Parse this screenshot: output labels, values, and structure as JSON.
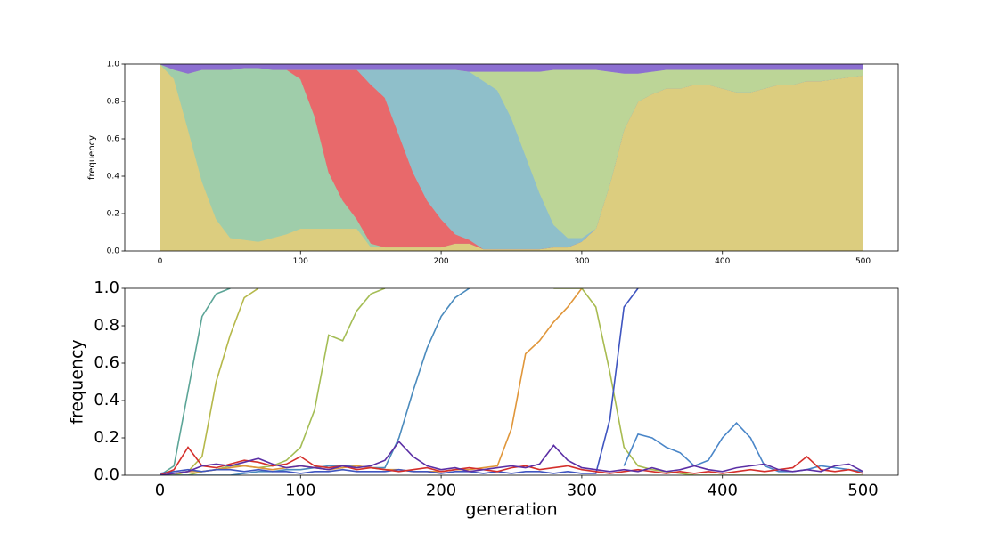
{
  "chart_data": [
    {
      "type": "area",
      "stacked": true,
      "ylabel": "frequency",
      "x": [
        0,
        10,
        20,
        30,
        40,
        50,
        60,
        70,
        80,
        90,
        100,
        110,
        120,
        130,
        140,
        150,
        160,
        170,
        180,
        190,
        200,
        210,
        220,
        230,
        240,
        250,
        260,
        270,
        280,
        290,
        300,
        310,
        320,
        330,
        340,
        350,
        360,
        370,
        380,
        390,
        400,
        410,
        420,
        430,
        440,
        450,
        460,
        470,
        480,
        490,
        500
      ],
      "xlim": [
        -25,
        525
      ],
      "xticks": [
        0,
        100,
        200,
        300,
        400,
        500
      ],
      "ylim": [
        0,
        1
      ],
      "yticks": [
        {
          "value": 0,
          "label": "0.0"
        },
        0.2,
        0.4,
        0.6,
        0.8,
        {
          "value": 1,
          "label": "1.0"
        }
      ],
      "series": [
        {
          "color": "#dccd7f",
          "values": [
            1,
            0.92,
            0.65,
            0.37,
            0.17,
            0.07,
            0.06,
            0.05,
            0.07,
            0.09,
            0.12,
            0.12,
            0.12,
            0.12,
            0.12,
            0.02,
            0.02,
            0.02,
            0.02,
            0.02,
            0.02,
            0.04,
            0.04,
            0.01,
            0.01,
            0.01,
            0.01,
            0.01,
            0.02,
            0.02,
            0.05,
            0.12,
            0.36,
            0.65,
            0.8,
            0.84,
            0.87,
            0.87,
            0.89,
            0.89,
            0.87,
            0.85,
            0.85,
            0.87,
            0.89,
            0.89,
            0.91,
            0.91,
            0.92,
            0.93,
            0.94
          ]
        },
        {
          "color": "#9fcdaa",
          "values": [
            0,
            0.05,
            0.3,
            0.6,
            0.8,
            0.9,
            0.92,
            0.93,
            0.9,
            0.88,
            0.8,
            0.6,
            0.3,
            0.15,
            0.05,
            0.02,
            0,
            0,
            0,
            0,
            0,
            0,
            0,
            0,
            0,
            0,
            0,
            0,
            0,
            0,
            0,
            0,
            0,
            0,
            0,
            0,
            0,
            0,
            0,
            0,
            0,
            0,
            0,
            0,
            0,
            0,
            0,
            0,
            0,
            0,
            0
          ]
        },
        {
          "color": "#e8696b",
          "values": [
            0,
            0,
            0,
            0,
            0,
            0,
            0,
            0,
            0,
            0,
            0.05,
            0.25,
            0.55,
            0.7,
            0.8,
            0.85,
            0.8,
            0.6,
            0.4,
            0.25,
            0.15,
            0.05,
            0.02,
            0,
            0,
            0,
            0,
            0,
            0,
            0,
            0,
            0,
            0,
            0,
            0,
            0,
            0,
            0,
            0,
            0,
            0,
            0,
            0,
            0,
            0,
            0,
            0,
            0,
            0,
            0,
            0
          ]
        },
        {
          "color": "#8fbfca",
          "values": [
            0,
            0,
            0,
            0,
            0,
            0,
            0,
            0,
            0,
            0,
            0,
            0,
            0,
            0,
            0,
            0.08,
            0.15,
            0.35,
            0.55,
            0.7,
            0.8,
            0.88,
            0.9,
            0.9,
            0.85,
            0.7,
            0.5,
            0.3,
            0.12,
            0.05,
            0.02,
            0,
            0,
            0,
            0,
            0,
            0,
            0,
            0,
            0,
            0,
            0,
            0,
            0,
            0,
            0,
            0,
            0,
            0,
            0,
            0
          ]
        },
        {
          "color": "#bcd597",
          "values": [
            0,
            0,
            0,
            0,
            0,
            0,
            0,
            0,
            0,
            0,
            0,
            0,
            0,
            0,
            0,
            0,
            0,
            0,
            0,
            0,
            0,
            0,
            0,
            0.05,
            0.1,
            0.25,
            0.45,
            0.65,
            0.83,
            0.9,
            0.9,
            0.85,
            0.6,
            0.3,
            0.15,
            0.12,
            0.1,
            0.1,
            0.08,
            0.08,
            0.1,
            0.12,
            0.12,
            0.1,
            0.08,
            0.08,
            0.06,
            0.06,
            0.05,
            0.04,
            0.03
          ]
        },
        {
          "color": "#8c6fd1",
          "values": [
            0,
            0.03,
            0.05,
            0.03,
            0.03,
            0.03,
            0.02,
            0.02,
            0.03,
            0.03,
            0.03,
            0.03,
            0.03,
            0.03,
            0.03,
            0.03,
            0.03,
            0.03,
            0.03,
            0.03,
            0.03,
            0.03,
            0.04,
            0.04,
            0.04,
            0.04,
            0.04,
            0.04,
            0.03,
            0.03,
            0.03,
            0.03,
            0.04,
            0.05,
            0.05,
            0.04,
            0.03,
            0.03,
            0.03,
            0.03,
            0.03,
            0.03,
            0.03,
            0.03,
            0.03,
            0.03,
            0.03,
            0.03,
            0.03,
            0.03,
            0.03
          ]
        }
      ]
    },
    {
      "type": "line",
      "xlabel": "generation",
      "ylabel": "frequency",
      "x": [
        0,
        10,
        20,
        30,
        40,
        50,
        60,
        70,
        80,
        90,
        100,
        110,
        120,
        130,
        140,
        150,
        160,
        170,
        180,
        190,
        200,
        210,
        220,
        230,
        240,
        250,
        260,
        270,
        280,
        290,
        300,
        310,
        320,
        330,
        340,
        350,
        360,
        370,
        380,
        390,
        400,
        410,
        420,
        430,
        440,
        450,
        460,
        470,
        480,
        490,
        500
      ],
      "xlim": [
        -25,
        525
      ],
      "xticks": [
        0,
        100,
        200,
        300,
        400,
        500
      ],
      "ylim": [
        0,
        1
      ],
      "yticks": [
        {
          "value": 0,
          "label": "0.0"
        },
        0.2,
        0.4,
        0.6,
        0.8,
        {
          "value": 1,
          "label": "1.0"
        }
      ],
      "series": [
        {
          "color": "#5ca597",
          "values": [
            0,
            0.05,
            0.45,
            0.85,
            0.97,
            1,
            null,
            null,
            null,
            null,
            null,
            null,
            null,
            null,
            null,
            null,
            null,
            null,
            null,
            null,
            null,
            null,
            null,
            null,
            null,
            null,
            null,
            null,
            null,
            null,
            null,
            null,
            null,
            null,
            null,
            null,
            null,
            null,
            null,
            null,
            null,
            null,
            null,
            null,
            null,
            null,
            null,
            null,
            null,
            null,
            null
          ]
        },
        {
          "color": "#b5b84a",
          "values": [
            0,
            0,
            0.02,
            0.1,
            0.5,
            0.75,
            0.95,
            1,
            null,
            null,
            null,
            null,
            null,
            null,
            null,
            null,
            null,
            null,
            null,
            null,
            null,
            null,
            null,
            null,
            null,
            null,
            null,
            null,
            null,
            null,
            null,
            null,
            null,
            null,
            null,
            null,
            null,
            null,
            null,
            null,
            null,
            null,
            null,
            null,
            null,
            null,
            null,
            null,
            null,
            null,
            null
          ]
        },
        {
          "color": "#a4bd55",
          "values": [
            0,
            0,
            0,
            0.02,
            0.03,
            0.05,
            0.05,
            0.04,
            0.05,
            0.08,
            0.15,
            0.35,
            0.75,
            0.72,
            0.88,
            0.97,
            1,
            null,
            null,
            null,
            null,
            null,
            null,
            null,
            null,
            null,
            null,
            null,
            null,
            null,
            null,
            null,
            null,
            null,
            null,
            null,
            null,
            null,
            null,
            null,
            null,
            null,
            null,
            null,
            null,
            null,
            null,
            null,
            null,
            null,
            null
          ]
        },
        {
          "color": "#4b8bbd",
          "values": [
            0,
            0,
            0,
            0,
            0,
            0,
            0.01,
            0.02,
            0.02,
            0.03,
            0.03,
            0.04,
            0.05,
            0.05,
            0.05,
            0.04,
            0.04,
            0.2,
            0.45,
            0.68,
            0.85,
            0.95,
            1,
            null,
            null,
            null,
            null,
            null,
            null,
            null,
            null,
            null,
            null,
            null,
            null,
            null,
            null,
            null,
            null,
            null,
            null,
            null,
            null,
            null,
            null,
            null,
            null,
            null,
            null,
            null,
            null
          ]
        },
        {
          "color": "#e0963a",
          "values": [
            0,
            0.01,
            0.02,
            0.02,
            0.03,
            0.04,
            0.05,
            0.04,
            0.03,
            0.04,
            0.05,
            0.04,
            0.03,
            0.04,
            0.05,
            0.04,
            0.03,
            0.03,
            0.02,
            0.02,
            0.02,
            0.03,
            0.03,
            0.04,
            0.05,
            0.25,
            0.65,
            0.72,
            0.82,
            0.9,
            1,
            null,
            null,
            null,
            null,
            null,
            null,
            null,
            null,
            null,
            null,
            null,
            null,
            null,
            null,
            null,
            null,
            null,
            null,
            null,
            null
          ]
        },
        {
          "color": "#a8bb50",
          "values": [
            null,
            null,
            null,
            null,
            null,
            null,
            null,
            null,
            null,
            null,
            null,
            null,
            null,
            null,
            null,
            null,
            null,
            null,
            null,
            null,
            null,
            null,
            null,
            null,
            null,
            null,
            null,
            null,
            1,
            1,
            1,
            0.9,
            0.55,
            0.15,
            0.05,
            0.03,
            0.02,
            0.01,
            0,
            0,
            0,
            0,
            0,
            0,
            0,
            0,
            0,
            0,
            0,
            0,
            0
          ]
        },
        {
          "color": "#3f55c0",
          "values": [
            0.01,
            0.02,
            0.03,
            0.02,
            0.03,
            0.03,
            0.02,
            0.03,
            0.02,
            0.02,
            0.01,
            0.02,
            0.02,
            0.03,
            0.02,
            0.02,
            0.02,
            0.03,
            0.02,
            0.02,
            0.01,
            0.02,
            0.02,
            0.01,
            0.02,
            0.01,
            0.02,
            0.02,
            0.01,
            0.02,
            0.01,
            0.01,
            0.3,
            0.9,
            1,
            null,
            null,
            null,
            null,
            null,
            null,
            null,
            null,
            null,
            null,
            null,
            null,
            null,
            null,
            null,
            null
          ]
        },
        {
          "color": "#4a86c8",
          "values": [
            null,
            null,
            null,
            null,
            null,
            null,
            null,
            null,
            null,
            null,
            null,
            null,
            null,
            null,
            null,
            null,
            null,
            null,
            null,
            null,
            null,
            null,
            null,
            null,
            null,
            null,
            null,
            null,
            null,
            null,
            null,
            null,
            null,
            0.05,
            0.22,
            0.2,
            0.15,
            0.12,
            0.05,
            0.08,
            0.2,
            0.28,
            0.2,
            0.05,
            0.02,
            0.02,
            0.03,
            0.05,
            0.04,
            0.03,
            0.02
          ]
        },
        {
          "color": "#d42f2b",
          "values": [
            0,
            0.03,
            0.15,
            0.05,
            0.04,
            0.06,
            0.08,
            0.07,
            0.05,
            0.06,
            0.1,
            0.05,
            0.04,
            0.05,
            0.03,
            0.04,
            0.03,
            0.02,
            0.03,
            0.04,
            0.02,
            0.03,
            0.04,
            0.03,
            0.02,
            0.04,
            0.05,
            0.03,
            0.04,
            0.05,
            0.03,
            0.02,
            0.01,
            0.02,
            0.03,
            0.02,
            0.01,
            0.02,
            0.01,
            0.02,
            0.01,
            0.02,
            0.03,
            0.02,
            0.03,
            0.04,
            0.1,
            0.03,
            0.02,
            0.03,
            0.01
          ]
        },
        {
          "color": "#5b2fa5",
          "values": [
            0,
            0.01,
            0.02,
            0.05,
            0.06,
            0.05,
            0.07,
            0.09,
            0.06,
            0.04,
            0.05,
            0.04,
            0.03,
            0.05,
            0.04,
            0.05,
            0.08,
            0.18,
            0.1,
            0.05,
            0.03,
            0.04,
            0.02,
            0.03,
            0.04,
            0.05,
            0.04,
            0.06,
            0.16,
            0.08,
            0.04,
            0.03,
            0.02,
            0.03,
            0.02,
            0.04,
            0.02,
            0.03,
            0.05,
            0.03,
            0.02,
            0.04,
            0.05,
            0.06,
            0.03,
            0.02,
            0.03,
            0.02,
            0.05,
            0.06,
            0.02
          ]
        }
      ]
    }
  ]
}
